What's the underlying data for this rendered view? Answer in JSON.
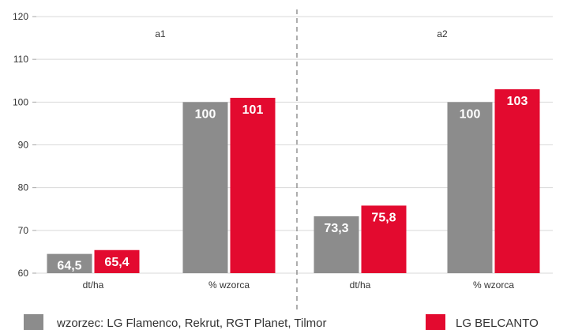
{
  "chart_data": {
    "type": "bar",
    "ylim": [
      60,
      120
    ],
    "yticks": [
      60,
      70,
      80,
      90,
      100,
      110,
      120
    ],
    "grid": true,
    "legend_position": "bottom",
    "panels": [
      "a1",
      "a2"
    ],
    "categories": [
      "dt/ha",
      "% wzorca",
      "dt/ha",
      "% wzorca"
    ],
    "series": [
      {
        "name": "wzorzec: LG Flamenco, Rekrut, RGT Planet, Tilmor",
        "color": "#8c8c8c",
        "values": [
          64.5,
          100,
          73.3,
          100
        ],
        "value_labels": [
          "64,5",
          "100",
          "73,3",
          "100"
        ]
      },
      {
        "name": "LG BELCANTO",
        "color": "#e30a2f",
        "values": [
          65.4,
          101,
          75.8,
          103
        ],
        "value_labels": [
          "65,4",
          "101",
          "75,8",
          "103"
        ]
      }
    ]
  }
}
